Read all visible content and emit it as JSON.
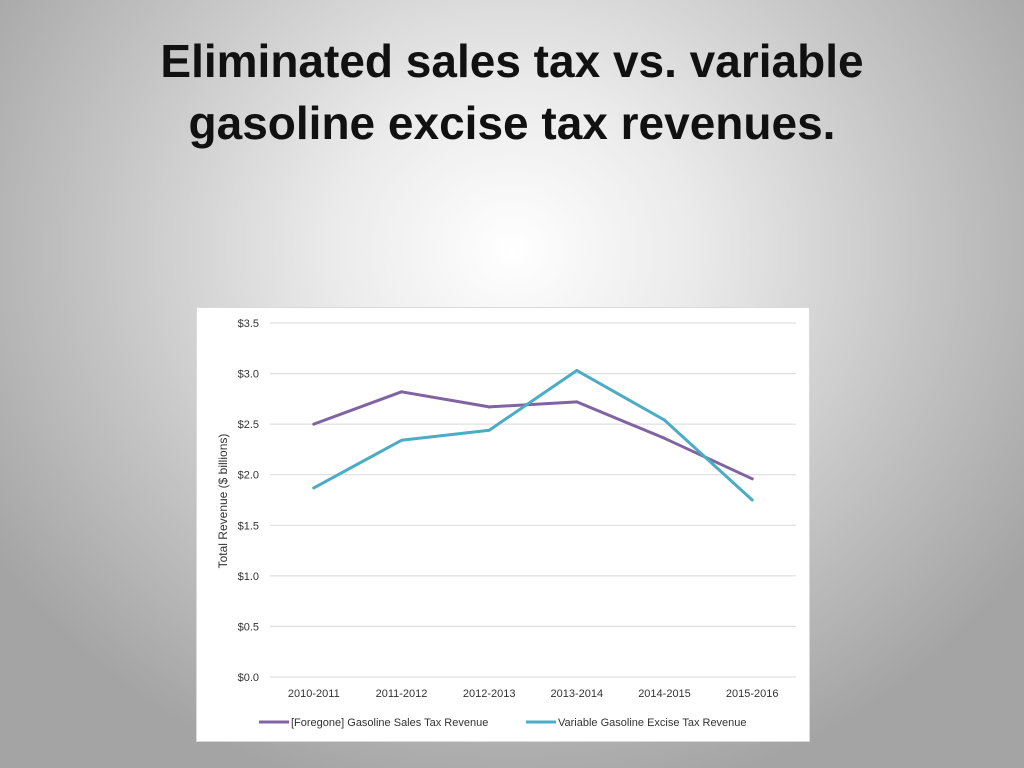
{
  "slide": {
    "title_line1": "Eliminated sales tax vs. variable",
    "title_line2": "gasoline excise tax revenues."
  },
  "chart_data": {
    "type": "line",
    "categories": [
      "2010-2011",
      "2011-2012",
      "2012-2013",
      "2013-2014",
      "2014-2015",
      "2015-2016"
    ],
    "series": [
      {
        "name": "[Foregone] Gasoline Sales Tax Revenue",
        "values": [
          2.5,
          2.82,
          2.67,
          2.72,
          2.36,
          1.96
        ],
        "color": "#8064a2"
      },
      {
        "name": "Variable Gasoline Excise Tax Revenue",
        "values": [
          1.87,
          2.34,
          2.44,
          3.03,
          2.54,
          1.75
        ],
        "color": "#4bacc6"
      }
    ],
    "ylabel": "Total Revenue ($ billions)",
    "ylim": [
      0,
      3.5
    ],
    "yticks": [
      "$0.0",
      "$0.5",
      "$1.0",
      "$1.5",
      "$2.0",
      "$2.5",
      "$3.0",
      "$3.5"
    ],
    "grid": true,
    "legend_position": "bottom"
  }
}
